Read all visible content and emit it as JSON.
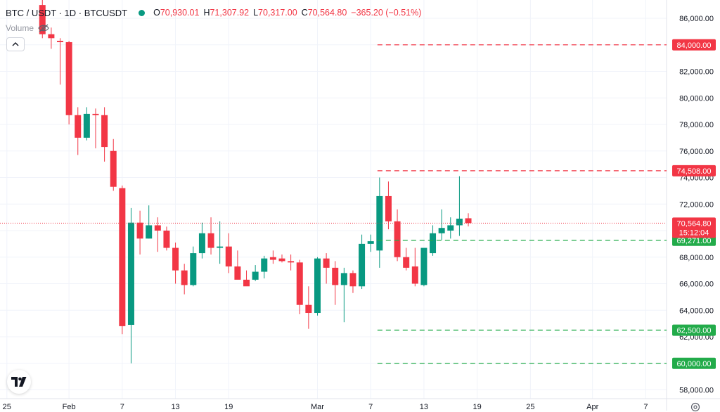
{
  "header": {
    "symbol": "BTC / USDT · 1D · BTCUSDT",
    "open_key": "O",
    "open": "70,930.01",
    "high_key": "H",
    "high": "71,307.92",
    "low_key": "L",
    "low": "70,317.00",
    "close_key": "C",
    "close": "70,564.80",
    "change": "−365.20 (−0.51%)",
    "status_color": "#089981"
  },
  "volume_label": "Volume",
  "icons": {
    "visibility": "eye-off-icon",
    "collapse": "chevron-up-icon",
    "logo": "tradingview-logo",
    "settings": "gear-icon"
  },
  "colors": {
    "up": "#089981",
    "down": "#f23645",
    "resistance": "#f23645",
    "support": "#22ab4a",
    "last_price": "#f23645"
  },
  "chart_data": {
    "type": "candlestick",
    "ylim": [
      57000,
      87000
    ],
    "y_ticks": [
      "86,000.00",
      "84,000.00",
      "82,000.00",
      "80,000.00",
      "78,000.00",
      "76,000.00",
      "74,000.00",
      "72,000.00",
      "70,000.00",
      "68,000.00",
      "66,000.00",
      "64,000.00",
      "62,000.00",
      "60,000.00",
      "58,000.00"
    ],
    "y_tick_values": [
      86000,
      84000,
      82000,
      80000,
      78000,
      76000,
      74000,
      72000,
      70000,
      68000,
      66000,
      64000,
      62000,
      60000,
      58000
    ],
    "x_ticks": [
      {
        "label": "25",
        "day": 0
      },
      {
        "label": "Feb",
        "day": 7
      },
      {
        "label": "7",
        "day": 13
      },
      {
        "label": "13",
        "day": 19
      },
      {
        "label": "19",
        "day": 25
      },
      {
        "label": "Mar",
        "day": 35
      },
      {
        "label": "7",
        "day": 41
      },
      {
        "label": "13",
        "day": 47
      },
      {
        "label": "19",
        "day": 53
      },
      {
        "label": "25",
        "day": 59
      },
      {
        "label": "Apr",
        "day": 66
      },
      {
        "label": "7",
        "day": 72
      }
    ],
    "x_range": [
      -0.3,
      76.3
    ],
    "candles": [
      {
        "day": 4,
        "o": 87000,
        "h": 87500,
        "l": 84500,
        "c": 84800
      },
      {
        "day": 5,
        "o": 84800,
        "h": 85300,
        "l": 83700,
        "c": 84500
      },
      {
        "day": 6,
        "o": 84300,
        "h": 84500,
        "l": 81000,
        "c": 84200
      },
      {
        "day": 7,
        "o": 84200,
        "h": 84300,
        "l": 78000,
        "c": 78700
      },
      {
        "day": 8,
        "o": 78700,
        "h": 79300,
        "l": 75700,
        "c": 77000
      },
      {
        "day": 9,
        "o": 77000,
        "h": 79300,
        "l": 76800,
        "c": 78800
      },
      {
        "day": 10,
        "o": 78800,
        "h": 79200,
        "l": 76200,
        "c": 78700
      },
      {
        "day": 11,
        "o": 78700,
        "h": 79300,
        "l": 75200,
        "c": 76300
      },
      {
        "day": 12,
        "o": 76000,
        "h": 76900,
        "l": 73000,
        "c": 73300
      },
      {
        "day": 13,
        "o": 73200,
        "h": 73400,
        "l": 62200,
        "c": 62800
      },
      {
        "day": 14,
        "o": 62900,
        "h": 71700,
        "l": 60000,
        "c": 70600
      },
      {
        "day": 15,
        "o": 70600,
        "h": 71500,
        "l": 68200,
        "c": 69400
      },
      {
        "day": 16,
        "o": 69400,
        "h": 71900,
        "l": 69400,
        "c": 70400
      },
      {
        "day": 17,
        "o": 70400,
        "h": 71000,
        "l": 68400,
        "c": 70000
      },
      {
        "day": 18,
        "o": 70000,
        "h": 70300,
        "l": 68500,
        "c": 68700
      },
      {
        "day": 19,
        "o": 68700,
        "h": 69100,
        "l": 66000,
        "c": 67000
      },
      {
        "day": 20,
        "o": 67000,
        "h": 67500,
        "l": 65200,
        "c": 65900
      },
      {
        "day": 21,
        "o": 65900,
        "h": 68800,
        "l": 65800,
        "c": 68300
      },
      {
        "day": 22,
        "o": 68300,
        "h": 70600,
        "l": 67900,
        "c": 69800
      },
      {
        "day": 23,
        "o": 69800,
        "h": 71000,
        "l": 68200,
        "c": 68700
      },
      {
        "day": 24,
        "o": 68700,
        "h": 70700,
        "l": 67500,
        "c": 68800
      },
      {
        "day": 25,
        "o": 68800,
        "h": 69800,
        "l": 66800,
        "c": 67300
      },
      {
        "day": 26,
        "o": 67300,
        "h": 68500,
        "l": 66500,
        "c": 66300
      },
      {
        "day": 27,
        "o": 66300,
        "h": 67000,
        "l": 65900,
        "c": 65800
      },
      {
        "day": 28,
        "o": 66300,
        "h": 67400,
        "l": 66200,
        "c": 66900
      },
      {
        "day": 29,
        "o": 66900,
        "h": 68100,
        "l": 66400,
        "c": 67900
      },
      {
        "day": 30,
        "o": 68000,
        "h": 68500,
        "l": 67500,
        "c": 67800
      },
      {
        "day": 31,
        "o": 67900,
        "h": 68200,
        "l": 67600,
        "c": 67700
      },
      {
        "day": 32,
        "o": 67700,
        "h": 68200,
        "l": 67000,
        "c": 67600
      },
      {
        "day": 33,
        "o": 67600,
        "h": 67800,
        "l": 63700,
        "c": 64400
      },
      {
        "day": 34,
        "o": 64400,
        "h": 65800,
        "l": 62600,
        "c": 63800
      },
      {
        "day": 35,
        "o": 63800,
        "h": 68000,
        "l": 63600,
        "c": 67900
      },
      {
        "day": 36,
        "o": 67900,
        "h": 68300,
        "l": 66000,
        "c": 67200
      },
      {
        "day": 37,
        "o": 67200,
        "h": 67700,
        "l": 64400,
        "c": 65900
      },
      {
        "day": 38,
        "o": 65900,
        "h": 67200,
        "l": 63100,
        "c": 66800
      },
      {
        "day": 39,
        "o": 66800,
        "h": 67000,
        "l": 65300,
        "c": 65800
      },
      {
        "day": 40,
        "o": 65800,
        "h": 69700,
        "l": 65600,
        "c": 69000
      },
      {
        "day": 41,
        "o": 69000,
        "h": 69700,
        "l": 68400,
        "c": 69200
      },
      {
        "day": 42,
        "o": 68500,
        "h": 74000,
        "l": 67200,
        "c": 72600
      },
      {
        "day": 43,
        "o": 72600,
        "h": 73700,
        "l": 70100,
        "c": 70700
      },
      {
        "day": 44,
        "o": 70700,
        "h": 71600,
        "l": 67700,
        "c": 68000
      },
      {
        "day": 45,
        "o": 68000,
        "h": 68700,
        "l": 67000,
        "c": 67200
      },
      {
        "day": 46,
        "o": 67300,
        "h": 68700,
        "l": 65800,
        "c": 66000
      },
      {
        "day": 47,
        "o": 65900,
        "h": 68600,
        "l": 65800,
        "c": 68700
      },
      {
        "day": 48,
        "o": 68300,
        "h": 70400,
        "l": 68100,
        "c": 69800
      },
      {
        "day": 49,
        "o": 69800,
        "h": 71600,
        "l": 69300,
        "c": 70200
      },
      {
        "day": 50,
        "o": 70000,
        "h": 71000,
        "l": 69400,
        "c": 70400
      },
      {
        "day": 51,
        "o": 70400,
        "h": 74100,
        "l": 69600,
        "c": 70900
      },
      {
        "day": 52,
        "o": 70930.01,
        "h": 71307.92,
        "l": 70317.0,
        "c": 70564.8
      }
    ],
    "price_lines": [
      {
        "label": "84,000.00",
        "value": 84000,
        "color": "#f23645",
        "from_day": 42
      },
      {
        "label": "74,508.00",
        "value": 74508,
        "color": "#f23645",
        "from_day": 42
      },
      {
        "label": "69,271.00",
        "value": 69271,
        "color": "#22ab4a",
        "from_day": 42
      },
      {
        "label": "62,500.00",
        "value": 62500,
        "color": "#22ab4a",
        "from_day": 42
      },
      {
        "label": "60,000.00",
        "value": 60000,
        "color": "#22ab4a",
        "from_day": 42
      }
    ],
    "last_price": {
      "value": 70564.8,
      "label": "70,564.80",
      "countdown": "15:12:04"
    }
  }
}
